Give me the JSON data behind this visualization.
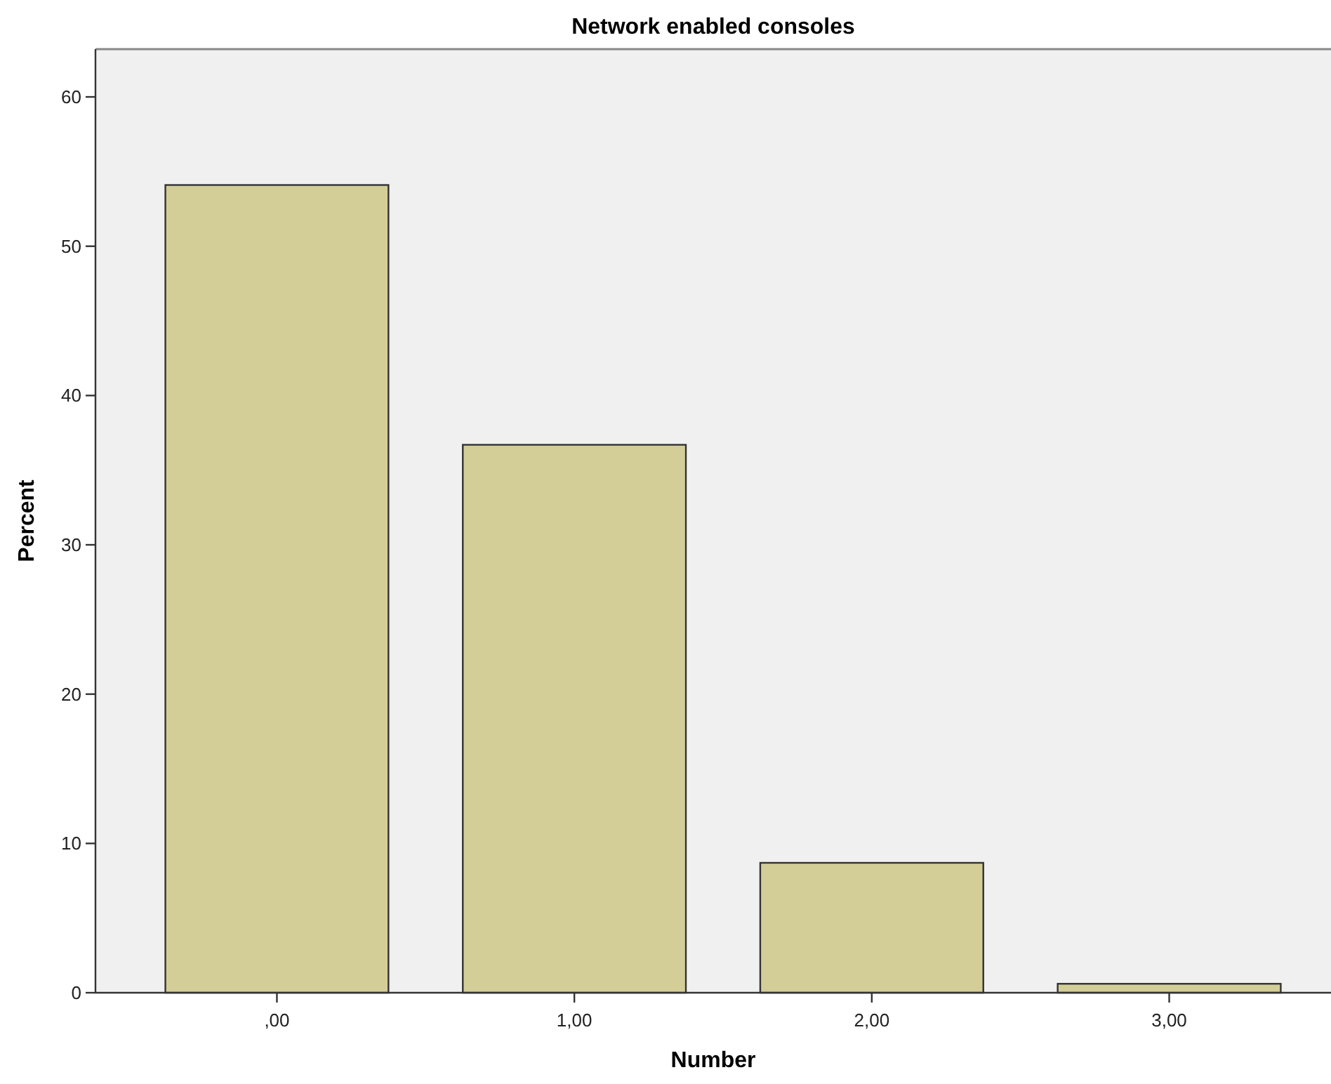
{
  "chart_data": {
    "type": "bar",
    "title": "Network enabled consoles",
    "xlabel": "Number",
    "ylabel": "Percent",
    "categories": [
      ",00",
      "1,00",
      "2,00",
      "3,00"
    ],
    "values": [
      54.1,
      36.7,
      8.7,
      0.6
    ],
    "color": "#d3ce97",
    "ylim": [
      0,
      63.2
    ],
    "yticks": [
      0,
      10,
      20,
      30,
      40,
      50,
      60
    ],
    "grid": false
  }
}
